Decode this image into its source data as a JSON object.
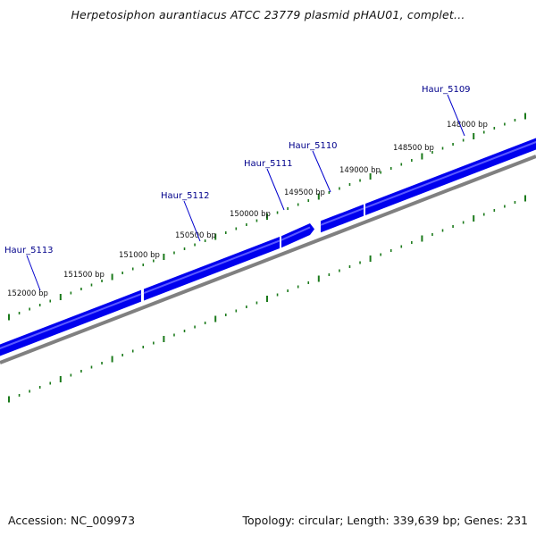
{
  "title": "Herpetosiphon aurantiacus ATCC 23779 plasmid pHAU01, complet...",
  "footer": {
    "accession": "Accession: NC_009973",
    "summary": "Topology: circular; Length: 339,639 bp; Genes: 231"
  },
  "colors": {
    "gene": "#0000ee",
    "gene_highlight": "#5a5aff",
    "backbone": "#808080",
    "ticks": "#1b7a1b",
    "gene_label": "#00008b"
  },
  "scale": {
    "tick_labels": [
      "148000 bp",
      "148500 bp",
      "149000 bp",
      "149500 bp",
      "150000 bp",
      "150500 bp",
      "151000 bp",
      "151500 bp",
      "152000 bp"
    ]
  },
  "genes": [
    {
      "name": "Haur_5109"
    },
    {
      "name": "Haur_5110"
    },
    {
      "name": "Haur_5111"
    },
    {
      "name": "Haur_5112"
    },
    {
      "name": "Haur_5113"
    }
  ]
}
